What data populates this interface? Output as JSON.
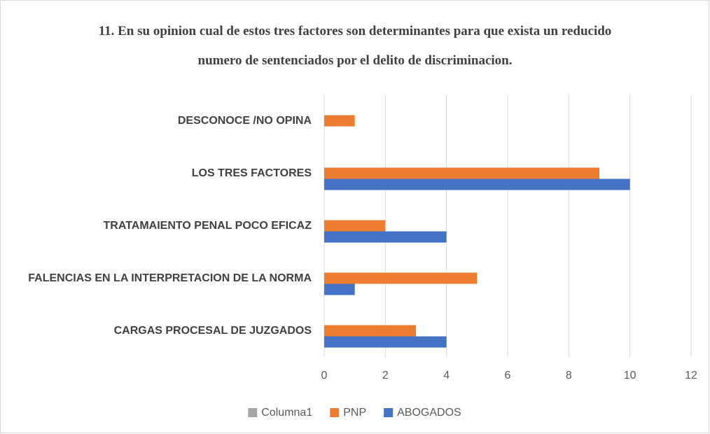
{
  "chart_data": {
    "type": "hbar",
    "title": "11. En su opinion  cual de estos tres factores son determinantes para que exista un reducido numero de sentenciados por el delito de discriminacion.",
    "categories": [
      "DESCONOCE /NO OPINA",
      "LOS TRES FACTORES",
      "TRATAMAIENTO PENAL POCO EFICAZ",
      "FALENCIAS EN LA INTERPRETACION DE LA NORMA",
      "CARGAS PROCESAL DE JUZGADOS"
    ],
    "series": [
      {
        "name": "Columna1",
        "color": "#a5a5a5",
        "values": [
          null,
          null,
          null,
          null,
          null
        ]
      },
      {
        "name": "PNP",
        "color": "#ed7d31",
        "values": [
          1,
          9,
          2,
          5,
          3
        ]
      },
      {
        "name": "ABOGADOS",
        "color": "#4472c4",
        "values": [
          null,
          10,
          4,
          1,
          4
        ]
      }
    ],
    "xlim": [
      0,
      12
    ],
    "xticks": [
      0,
      2,
      4,
      6,
      8,
      10,
      12
    ],
    "grid": true
  }
}
